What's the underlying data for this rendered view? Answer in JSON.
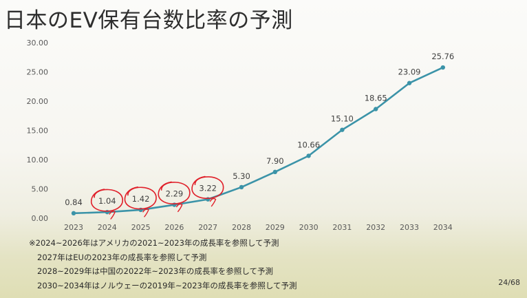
{
  "slide": {
    "title": "日本のEV保有台数比率の予測",
    "page_number": "24/68",
    "notes": [
      "※2024~2026年はアメリカの2021~2023年の成長率を参照して予測",
      "2027年はEUの2023年の成長率を参照して予測",
      "2028~2029年は中国の2022年~2023年の成長率を参照して予測",
      "2030~2034年はノルウェーの2019年~2023年の成長率を参照して予測"
    ]
  },
  "chart_data": {
    "type": "line",
    "title": "",
    "xlabel": "",
    "ylabel": "",
    "categories": [
      "2023",
      "2024",
      "2025",
      "2026",
      "2027",
      "2028",
      "2029",
      "2030",
      "2031",
      "2032",
      "2033",
      "2034"
    ],
    "series": [
      {
        "values": [
          0.84,
          1.04,
          1.42,
          2.29,
          3.22,
          5.3,
          7.9,
          10.66,
          15.1,
          18.65,
          23.09,
          25.76
        ],
        "labels": [
          "0.84",
          "1.04",
          "1.42",
          "2.29",
          "3.22",
          "5.30",
          "7.90",
          "10.66",
          "15.10",
          "18.65",
          "23.09",
          "25.76"
        ]
      }
    ],
    "yticks": [
      "0.00",
      "5.00",
      "10.00",
      "15.00",
      "20.00",
      "25.00",
      "30.00"
    ],
    "ylim": [
      0,
      30
    ],
    "grid": false,
    "legend": "none",
    "line_color": "#3b93a8",
    "circled_labels": [
      "1.04",
      "1.42",
      "2.29",
      "3.22"
    ],
    "annotation_color": "#e0202a"
  }
}
